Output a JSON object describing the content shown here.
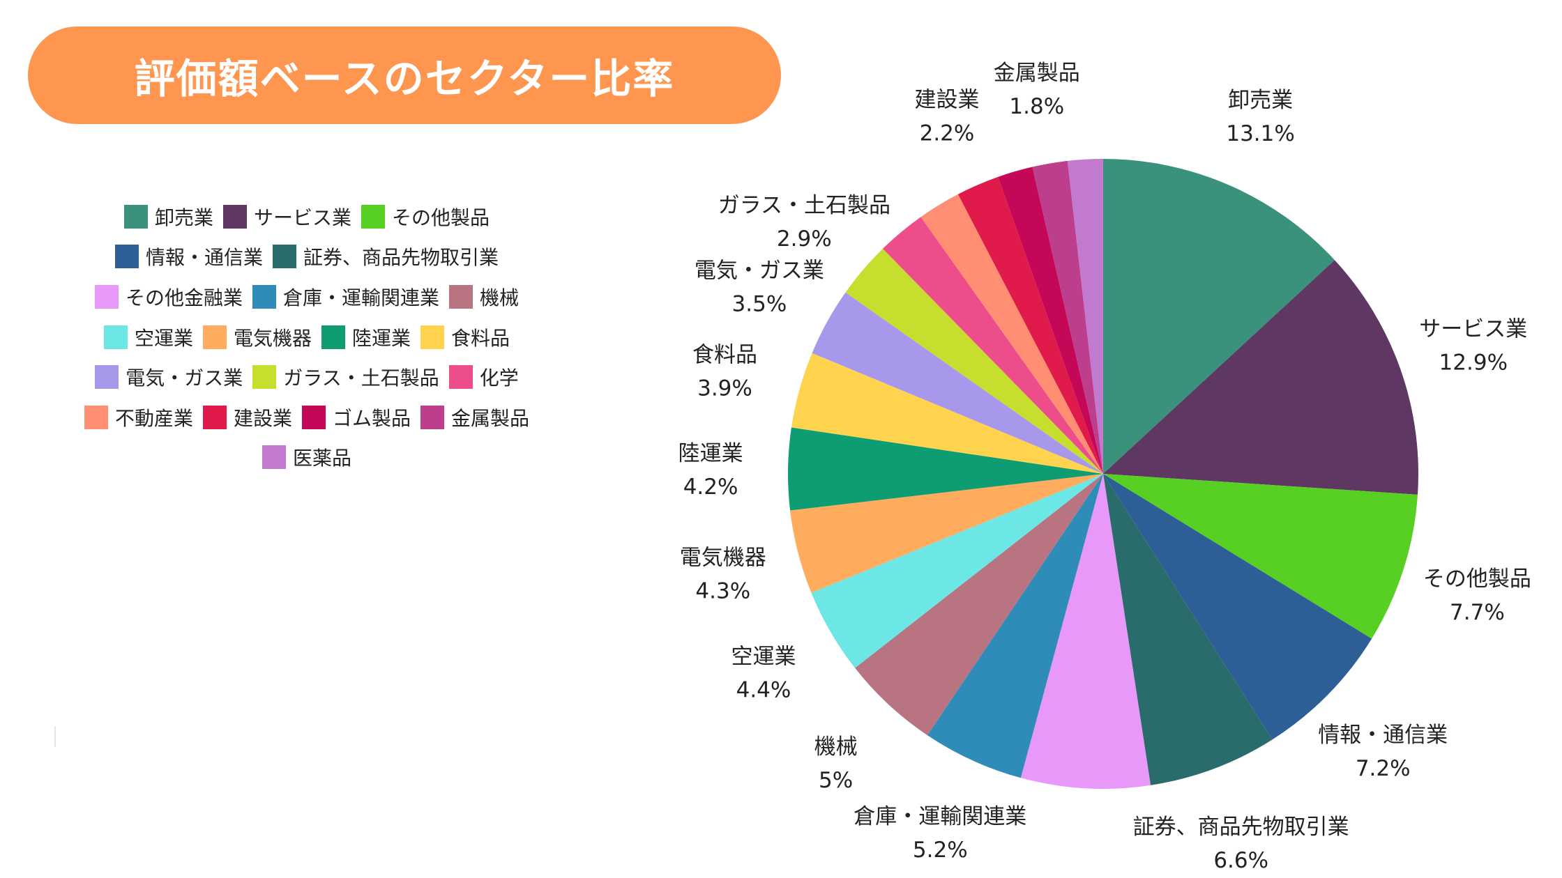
{
  "title": "評価額ベースのセクター比率",
  "chart_data": {
    "type": "pie",
    "legend_position": "left",
    "categories": [
      "卸売業",
      "サービス業",
      "その他製品",
      "情報・通信業",
      "証券、商品先物取引業",
      "その他金融業",
      "倉庫・運輸関連業",
      "機械",
      "空運業",
      "電気機器",
      "陸運業",
      "食料品",
      "電気・ガス業",
      "ガラス・土石製品",
      "化学",
      "不動産業",
      "建設業",
      "ゴム製品",
      "金属製品",
      "医薬品"
    ],
    "values": [
      13.1,
      12.9,
      7.7,
      7.2,
      6.6,
      6.6,
      5.2,
      5.0,
      4.4,
      4.3,
      4.2,
      3.9,
      3.5,
      2.9,
      2.5,
      2.2,
      2.2,
      1.8,
      1.8,
      1.8
    ],
    "colors": [
      "#3A917C",
      "#5E3862",
      "#57CF23",
      "#2E5E96",
      "#2A6B6B",
      "#E898F8",
      "#2F8CB8",
      "#B87480",
      "#6DE6E6",
      "#FFAC5E",
      "#0E9C72",
      "#FFD34D",
      "#A898EC",
      "#C8DE2E",
      "#EE4D8B",
      "#FF8E72",
      "#E11A4C",
      "#C40757",
      "#BC3E8C",
      "#C27ACE"
    ],
    "data_labels": [
      "13.1%",
      "12.9%",
      "7.7%",
      "7.2%",
      "6.6%",
      "",
      "5.2%",
      "5%",
      "4.4%",
      "4.3%",
      "4.2%",
      "3.9%",
      "3.5%",
      "2.9%",
      "",
      "",
      "2.2%",
      "",
      "1.8%",
      ""
    ],
    "labeled": [
      true,
      true,
      true,
      true,
      true,
      false,
      true,
      true,
      true,
      true,
      true,
      true,
      true,
      true,
      false,
      false,
      true,
      false,
      true,
      false
    ],
    "legend_rows": [
      [
        0,
        1,
        2
      ],
      [
        3,
        4
      ],
      [
        5,
        6,
        7
      ],
      [
        8,
        9,
        10,
        11
      ],
      [
        12,
        13,
        14
      ],
      [
        15,
        16,
        17,
        18
      ],
      [
        19
      ]
    ]
  }
}
